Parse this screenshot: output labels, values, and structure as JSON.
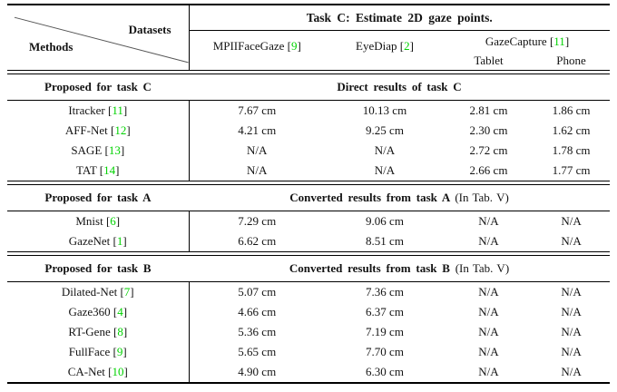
{
  "palette": {
    "background": "#ffffff",
    "text": "#131313",
    "rule": "#000000",
    "citation_green": "#00d200"
  },
  "table": {
    "corner": {
      "top_right": "Datasets",
      "bottom_left": "Methods"
    },
    "task_header": "Task C: Estimate 2D gaze points.",
    "citation_format": {
      "open": "[",
      "close": "]"
    },
    "columns": [
      {
        "name": "MPIIFaceGaze",
        "ref": "9"
      },
      {
        "name": "EyeDiap",
        "ref": "2"
      },
      {
        "name": "GazeCapture",
        "ref": "11",
        "subcolumns": [
          "Tablet",
          "Phone"
        ]
      }
    ],
    "sections": [
      {
        "method_header": "Proposed for task C",
        "result_header": "Direct results of task C",
        "result_note": "",
        "rows": [
          {
            "method": "Itracker",
            "ref": "11",
            "values": [
              "7.67 cm",
              "10.13 cm",
              "2.81 cm",
              "1.86 cm"
            ]
          },
          {
            "method": "AFF-Net",
            "ref": "12",
            "values": [
              "4.21 cm",
              "9.25 cm",
              "2.30 cm",
              "1.62 cm"
            ]
          },
          {
            "method": "SAGE",
            "ref": "13",
            "values": [
              "N/A",
              "N/A",
              "2.72 cm",
              "1.78 cm"
            ]
          },
          {
            "method": "TAT",
            "ref": "14",
            "values": [
              "N/A",
              "N/A",
              "2.66 cm",
              "1.77 cm"
            ]
          }
        ]
      },
      {
        "method_header": "Proposed for task A",
        "result_header": "Converted results from task A",
        "result_note": "(In Tab. V)",
        "rows": [
          {
            "method": "Mnist",
            "ref": "6",
            "values": [
              "7.29 cm",
              "9.06 cm",
              "N/A",
              "N/A"
            ]
          },
          {
            "method": "GazeNet",
            "ref": "1",
            "values": [
              "6.62 cm",
              "8.51 cm",
              "N/A",
              "N/A"
            ]
          }
        ]
      },
      {
        "method_header": "Proposed for task B",
        "result_header": "Converted results from task B",
        "result_note": "(In Tab. V)",
        "rows": [
          {
            "method": "Dilated-Net",
            "ref": "7",
            "values": [
              "5.07 cm",
              "7.36 cm",
              "N/A",
              "N/A"
            ]
          },
          {
            "method": "Gaze360",
            "ref": "4",
            "values": [
              "4.66 cm",
              "6.37 cm",
              "N/A",
              "N/A"
            ]
          },
          {
            "method": "RT-Gene",
            "ref": "8",
            "values": [
              "5.36 cm",
              "7.19 cm",
              "N/A",
              "N/A"
            ]
          },
          {
            "method": "FullFace",
            "ref": "9",
            "values": [
              "5.65 cm",
              "7.70 cm",
              "N/A",
              "N/A"
            ]
          },
          {
            "method": "CA-Net",
            "ref": "10",
            "values": [
              "4.90 cm",
              "6.30 cm",
              "N/A",
              "N/A"
            ]
          }
        ]
      }
    ]
  }
}
